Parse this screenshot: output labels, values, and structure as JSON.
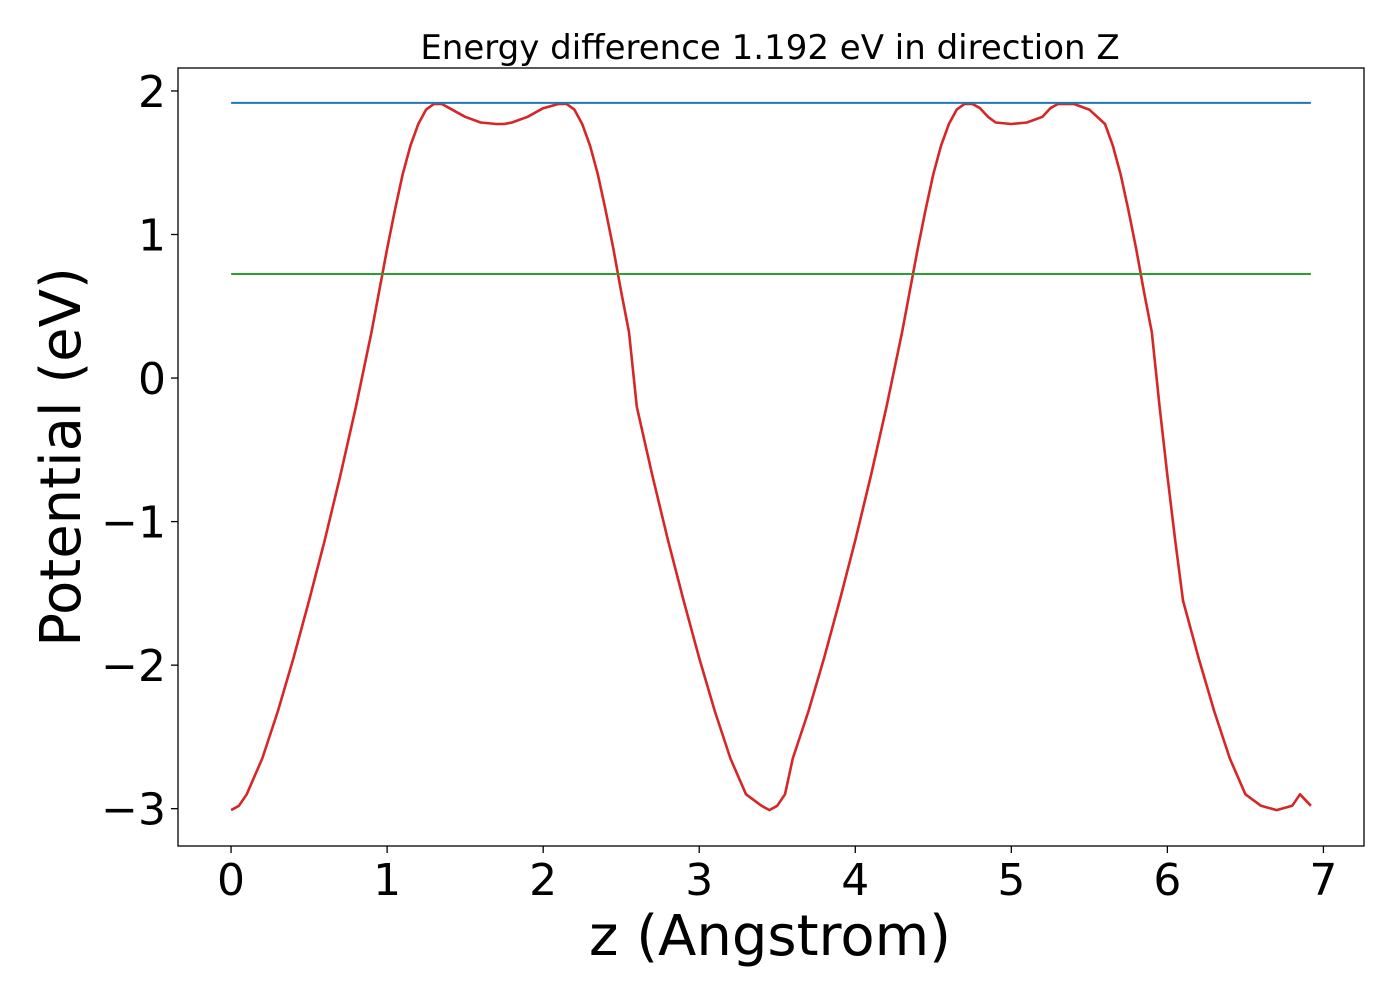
{
  "chart_data": {
    "type": "line",
    "title": "Energy difference 1.192 eV in direction Z",
    "xlabel": "z (Angstrom)",
    "ylabel": "Potential (eV)",
    "xlim": [
      -0.34,
      7.26
    ],
    "ylim": [
      -3.26,
      2.16
    ],
    "x_ticks": [
      0,
      1,
      2,
      3,
      4,
      5,
      6,
      7
    ],
    "x_tick_labels": [
      "0",
      "1",
      "2",
      "3",
      "4",
      "5",
      "6",
      "7"
    ],
    "y_ticks": [
      -3,
      -2,
      -1,
      0,
      1,
      2
    ],
    "y_tick_labels": [
      "−3",
      "−2",
      "−1",
      "0",
      "1",
      "2"
    ],
    "grid": false,
    "series": [
      {
        "color": "#d62728",
        "x": [
          0.0,
          0.05,
          0.1,
          0.2,
          0.3,
          0.4,
          0.5,
          0.6,
          0.7,
          0.8,
          0.9,
          1.0,
          1.05,
          1.1,
          1.15,
          1.2,
          1.25,
          1.3,
          1.35,
          1.4,
          1.5,
          1.6,
          1.7,
          1.75,
          1.8,
          1.9,
          2.0,
          2.1,
          2.15,
          2.2,
          2.25,
          2.3,
          2.35,
          2.4,
          2.45,
          2.5,
          2.55,
          2.6,
          2.7,
          2.8,
          2.9,
          3.0,
          3.1,
          3.2,
          3.3,
          3.4,
          3.45,
          3.5,
          3.55,
          3.6,
          3.7,
          3.8,
          3.9,
          4.0,
          4.1,
          4.2,
          4.3,
          4.4,
          4.45,
          4.5,
          4.55,
          4.6,
          4.65,
          4.7,
          4.75,
          4.8,
          4.85,
          4.9,
          5.0,
          5.1,
          5.2,
          5.25,
          5.3,
          5.4,
          5.5,
          5.6,
          5.65,
          5.7,
          5.75,
          5.8,
          5.85,
          5.9,
          5.95,
          6.0,
          6.05,
          6.1,
          6.2,
          6.3,
          6.4,
          6.5,
          6.6,
          6.7,
          6.8,
          6.85,
          6.92
        ],
        "y": [
          -3.01,
          -2.98,
          -2.9,
          -2.65,
          -2.32,
          -1.95,
          -1.55,
          -1.13,
          -0.68,
          -0.2,
          0.32,
          0.9,
          1.17,
          1.42,
          1.62,
          1.77,
          1.87,
          1.91,
          1.91,
          1.88,
          1.82,
          1.78,
          1.77,
          1.77,
          1.78,
          1.82,
          1.88,
          1.91,
          1.91,
          1.87,
          1.77,
          1.62,
          1.42,
          1.17,
          0.9,
          0.6,
          0.32,
          -0.2,
          -0.68,
          -1.13,
          -1.55,
          -1.95,
          -2.32,
          -2.65,
          -2.9,
          -2.98,
          -3.01,
          -2.98,
          -2.9,
          -2.65,
          -2.32,
          -1.95,
          -1.55,
          -1.13,
          -0.68,
          -0.2,
          0.32,
          0.9,
          1.17,
          1.42,
          1.62,
          1.77,
          1.87,
          1.91,
          1.91,
          1.88,
          1.82,
          1.78,
          1.77,
          1.78,
          1.82,
          1.88,
          1.91,
          1.91,
          1.87,
          1.77,
          1.62,
          1.42,
          1.17,
          0.9,
          0.6,
          0.32,
          -0.2,
          -0.68,
          -1.13,
          -1.55,
          -1.95,
          -2.32,
          -2.65,
          -2.9,
          -2.98,
          -3.01,
          -2.98,
          -2.9,
          -2.98
        ]
      },
      {
        "color": "#1f77b4",
        "x": [
          0.0,
          6.92
        ],
        "y": [
          1.917,
          1.917
        ]
      },
      {
        "color": "#2ca02c",
        "x": [
          0.0,
          6.92
        ],
        "y": [
          0.725,
          0.725
        ]
      }
    ]
  }
}
